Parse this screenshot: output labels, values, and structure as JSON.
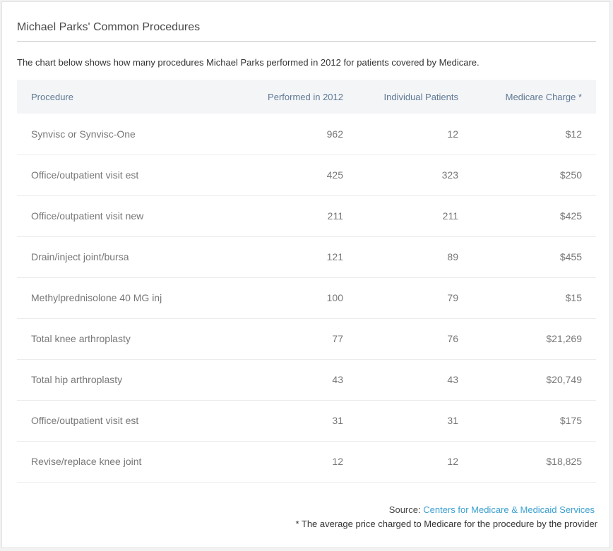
{
  "header": {
    "title": "Michael Parks' Common Procedures"
  },
  "description": "The chart below shows how many procedures Michael Parks performed in 2012 for patients covered by Medicare.",
  "table": {
    "columns": [
      "Procedure",
      "Performed in 2012",
      "Individual Patients",
      "Medicare Charge *"
    ],
    "rows": [
      [
        "Synvisc or Synvisc-One",
        "962",
        "12",
        "$12"
      ],
      [
        "Office/outpatient visit est",
        "425",
        "323",
        "$250"
      ],
      [
        "Office/outpatient visit new",
        "211",
        "211",
        "$425"
      ],
      [
        "Drain/inject joint/bursa",
        "121",
        "89",
        "$455"
      ],
      [
        "Methylprednisolone 40 MG inj",
        "100",
        "79",
        "$15"
      ],
      [
        "Total knee arthroplasty",
        "77",
        "76",
        "$21,269"
      ],
      [
        "Total hip arthroplasty",
        "43",
        "43",
        "$20,749"
      ],
      [
        "Office/outpatient visit est",
        "31",
        "31",
        "$175"
      ],
      [
        "Revise/replace knee joint",
        "12",
        "12",
        "$18,825"
      ]
    ]
  },
  "footer": {
    "source_label": "Source:",
    "source_link": "Centers for Medicare & Medicaid Services",
    "note": "* The average price charged to Medicare for the procedure by the provider"
  }
}
